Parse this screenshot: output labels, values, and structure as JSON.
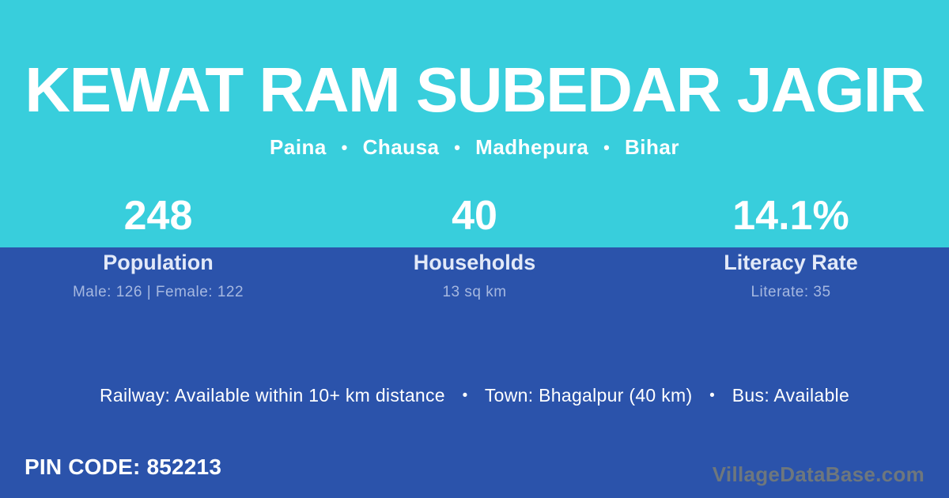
{
  "theme": {
    "header_cyan": "#38CEDC",
    "body_blue": "#2B53AB",
    "text_white": "#FFFFFF",
    "stat_label_color": "#E2E9F8",
    "stat_detail_color": "#A6B8E0",
    "watermark_gray": "#6E777D"
  },
  "header": {
    "title": "KEWAT RAM SUBEDAR JAGIR",
    "location": {
      "separator": "•",
      "parts": [
        "Paina",
        "Chausa",
        "Madhepura",
        "Bihar"
      ]
    }
  },
  "stats": [
    {
      "value": "248",
      "label": "Population",
      "detail": "Male: 126 | Female: 122"
    },
    {
      "value": "40",
      "label": "Households",
      "detail": "13 sq km"
    },
    {
      "value": "14.1%",
      "label": "Literacy Rate",
      "detail": "Literate: 35"
    }
  ],
  "transport": {
    "separator": "•",
    "segments": [
      "Railway: Available within 10+ km distance",
      "Town: Bhagalpur (40 km)",
      "Bus: Available"
    ]
  },
  "footer": {
    "pin_code": "PIN CODE: 852213",
    "watermark": "VillageDataBase.com"
  }
}
